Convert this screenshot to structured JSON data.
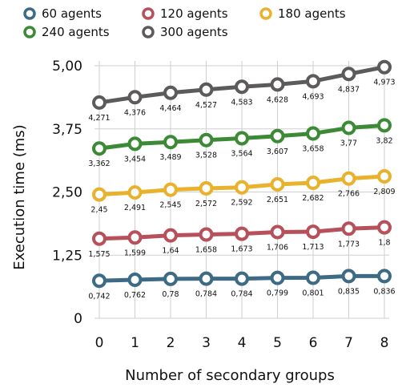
{
  "chart_data": {
    "type": "line",
    "title": "",
    "xlabel": "Number of secondary groups",
    "ylabel": "Execution time (ms)",
    "x": [
      0,
      1,
      2,
      3,
      4,
      5,
      6,
      7,
      8
    ],
    "ylim": [
      0,
      5
    ],
    "yticks": [
      0,
      1.25,
      2.5,
      3.75,
      5
    ],
    "ytick_labels": [
      "0",
      "1,25",
      "2,50",
      "3,75",
      "5,00"
    ],
    "grid": true,
    "legend": "top",
    "series": [
      {
        "name": "60 agents",
        "color": "#3d6a85",
        "values": [
          0.742,
          0.762,
          0.78,
          0.784,
          0.784,
          0.799,
          0.801,
          0.835,
          0.836
        ],
        "labels": [
          "0,742",
          "0,762",
          "0,78",
          "0,784",
          "0,784",
          "0,799",
          "0,801",
          "0,835",
          "0,836"
        ]
      },
      {
        "name": "120 agents",
        "color": "#b6505a",
        "values": [
          1.575,
          1.599,
          1.64,
          1.658,
          1.673,
          1.706,
          1.713,
          1.773,
          1.8
        ],
        "labels": [
          "1,575",
          "1,599",
          "1,64",
          "1,658",
          "1,673",
          "1,706",
          "1,713",
          "1,773",
          "1,8"
        ]
      },
      {
        "name": "180 agents",
        "color": "#e8b22c",
        "values": [
          2.45,
          2.491,
          2.545,
          2.572,
          2.592,
          2.651,
          2.682,
          2.766,
          2.809
        ],
        "labels": [
          "2,45",
          "2,491",
          "2,545",
          "2,572",
          "2,592",
          "2,651",
          "2,682",
          "2,766",
          "2,809"
        ]
      },
      {
        "name": "240 agents",
        "color": "#3c8a35",
        "values": [
          3.362,
          3.454,
          3.489,
          3.528,
          3.564,
          3.607,
          3.658,
          3.77,
          3.82
        ],
        "labels": [
          "3,362",
          "3,454",
          "3,489",
          "3,528",
          "3,564",
          "3,607",
          "3,658",
          "3,77",
          "3,82"
        ]
      },
      {
        "name": "300 agents",
        "color": "#5c5a5a",
        "values": [
          4.271,
          4.376,
          4.464,
          4.527,
          4.583,
          4.628,
          4.693,
          4.837,
          4.973
        ],
        "labels": [
          "4,271",
          "4,376",
          "4,464",
          "4,527",
          "4,583",
          "4,628",
          "4,693",
          "4,837",
          "4,973"
        ]
      }
    ]
  }
}
